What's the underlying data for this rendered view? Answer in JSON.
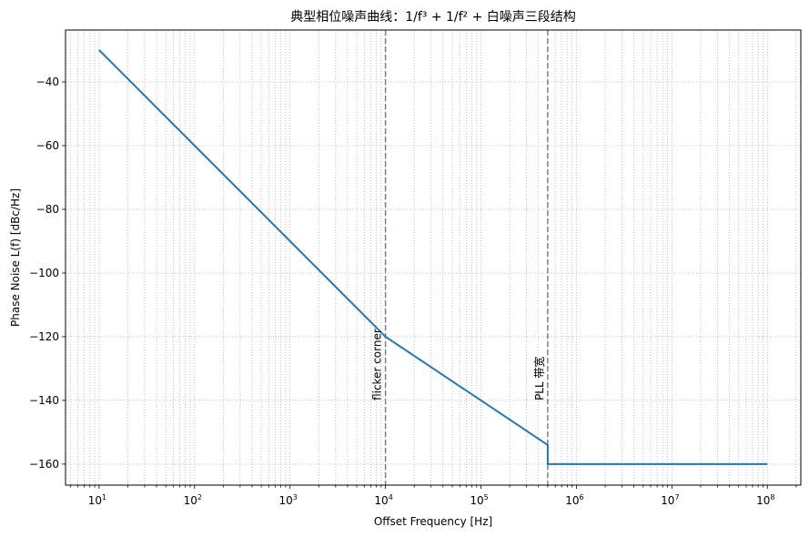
{
  "chart_data": {
    "type": "line",
    "title": "典型相位噪声曲线：1/f³ + 1/f² + 白噪声三段结构",
    "xlabel": "Offset Frequency [Hz]",
    "ylabel": "Phase Noise L(f) [dBc/Hz]",
    "xscale": "log",
    "xlim": [
      4.45,
      224000000.0
    ],
    "ylim": [
      -166.6,
      -23.7
    ],
    "grid": true,
    "grid_which": "both",
    "x_ticks": [
      {
        "value": 10,
        "label": "10",
        "exp": "1"
      },
      {
        "value": 100,
        "label": "10",
        "exp": "2"
      },
      {
        "value": 1000,
        "label": "10",
        "exp": "3"
      },
      {
        "value": 10000,
        "label": "10",
        "exp": "4"
      },
      {
        "value": 100000,
        "label": "10",
        "exp": "5"
      },
      {
        "value": 1000000,
        "label": "10",
        "exp": "6"
      },
      {
        "value": 10000000,
        "label": "10",
        "exp": "7"
      },
      {
        "value": 100000000,
        "label": "10",
        "exp": "8"
      }
    ],
    "y_ticks": [
      -40,
      -60,
      -80,
      -100,
      -120,
      -140,
      -160
    ],
    "y_tick_labels": [
      "−40",
      "−60",
      "−80",
      "−100",
      "−120",
      "−140",
      "−160"
    ],
    "series": [
      {
        "name": "L(f)",
        "color": "#1f77b4",
        "points": [
          {
            "x": 10,
            "y": -30
          },
          {
            "x": 10000,
            "y": -120
          },
          {
            "x": 500000,
            "y": -154
          },
          {
            "x": 500000,
            "y": -160
          },
          {
            "x": 100000000,
            "y": -160
          }
        ]
      }
    ],
    "vlines": [
      {
        "x": 10000,
        "label": "flicker corner",
        "color": "#808080",
        "style": "dashed"
      },
      {
        "x": 500000,
        "label": "PLL 带宽",
        "color": "#808080",
        "style": "dashed"
      }
    ]
  }
}
